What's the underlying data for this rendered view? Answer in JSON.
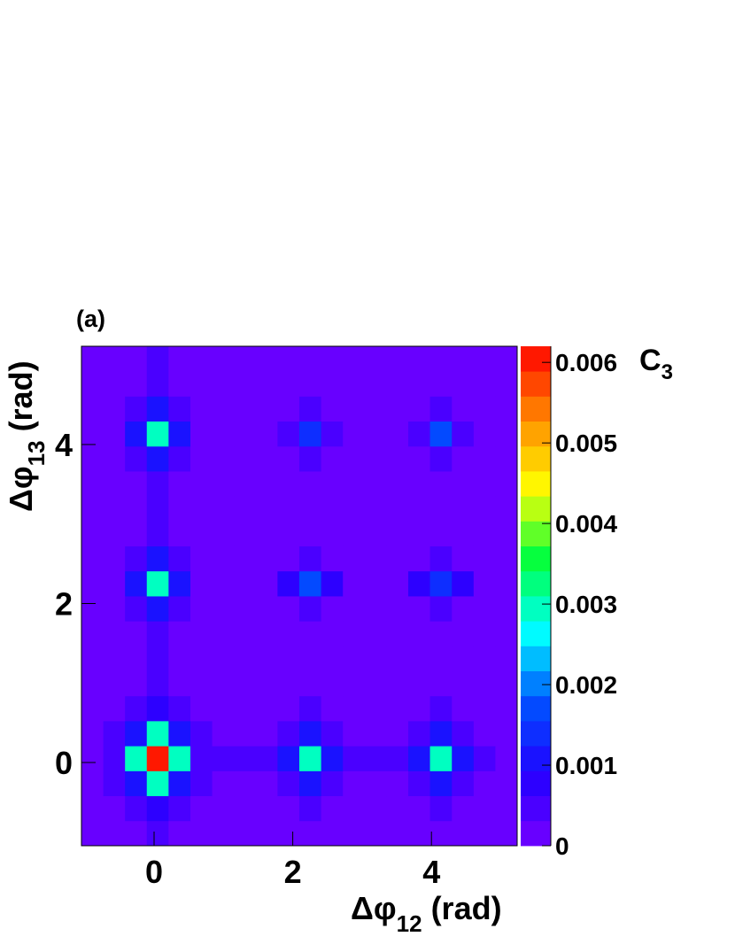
{
  "chart_data": {
    "type": "heatmap",
    "panel_label": "(a)",
    "xlabel": {
      "base": "Δφ",
      "sub": "12",
      "rest": " (rad)"
    },
    "ylabel": {
      "base": "Δφ",
      "sub": "13",
      "rest": " (rad)"
    },
    "zlabel": {
      "base": "C",
      "sub": "3"
    },
    "xlim": [
      -1.047,
      5.236
    ],
    "ylim": [
      -1.047,
      5.236
    ],
    "xticks": [
      0,
      2,
      4
    ],
    "yticks": [
      0,
      2,
      4
    ],
    "zlim": [
      0,
      0.0062
    ],
    "zticks": [
      0,
      0.001,
      0.002,
      0.003,
      0.004,
      0.005,
      0.006
    ],
    "colors": [
      "#7700ff",
      "#2200ff",
      "#0050ff",
      "#00ffff",
      "#00ff40",
      "#ffff00",
      "#ff8800",
      "#ff0000"
    ],
    "xbins": [
      -1.047,
      -0.733,
      -0.419,
      -0.105,
      0.209,
      0.524,
      0.838,
      1.152,
      1.466,
      1.78,
      2.094,
      2.409,
      2.723,
      3.037,
      3.351,
      3.665,
      3.979,
      4.294,
      4.608,
      4.922,
      5.236
    ],
    "ybins": [
      -1.047,
      -0.733,
      -0.419,
      -0.105,
      0.209,
      0.524,
      0.838,
      1.152,
      1.466,
      1.78,
      2.094,
      2.409,
      2.723,
      3.037,
      3.351,
      3.665,
      3.979,
      4.294,
      4.608,
      4.922,
      5.236
    ],
    "z": [
      [
        0.0002,
        0.0002,
        0.0002,
        0.0005,
        0.0002,
        0.0002,
        0.0002,
        0.0002,
        0.0002,
        0.0002,
        0.0002,
        0.0002,
        0.0002,
        0.0002,
        0.0002,
        0.0002,
        0.0002,
        0.0002,
        0.0002,
        0.0002
      ],
      [
        0.0002,
        0.0002,
        0.0005,
        0.0008,
        0.0005,
        0.0002,
        0.0002,
        0.0002,
        0.0002,
        0.0002,
        0.0004,
        0.0002,
        0.0002,
        0.0002,
        0.0002,
        0.0002,
        0.0004,
        0.0002,
        0.0002,
        0.0002
      ],
      [
        0.0002,
        0.0004,
        0.0012,
        0.003,
        0.0012,
        0.0004,
        0.0002,
        0.0002,
        0.0002,
        0.0006,
        0.0012,
        0.0006,
        0.0002,
        0.0002,
        0.0002,
        0.0006,
        0.0012,
        0.0006,
        0.0002,
        0.0002
      ],
      [
        0.0002,
        0.0005,
        0.003,
        0.006,
        0.003,
        0.0005,
        0.0004,
        0.0004,
        0.0004,
        0.0012,
        0.0028,
        0.0012,
        0.0004,
        0.0004,
        0.0004,
        0.0012,
        0.0028,
        0.0012,
        0.0004,
        0.0002
      ],
      [
        0.0002,
        0.0004,
        0.0012,
        0.003,
        0.0012,
        0.0004,
        0.0002,
        0.0002,
        0.0002,
        0.0006,
        0.0012,
        0.0006,
        0.0002,
        0.0002,
        0.0002,
        0.0006,
        0.0012,
        0.0006,
        0.0002,
        0.0002
      ],
      [
        0.0002,
        0.0002,
        0.0005,
        0.0008,
        0.0005,
        0.0002,
        0.0002,
        0.0002,
        0.0002,
        0.0002,
        0.0004,
        0.0002,
        0.0002,
        0.0002,
        0.0002,
        0.0002,
        0.0004,
        0.0002,
        0.0002,
        0.0002
      ],
      [
        0.0002,
        0.0002,
        0.0002,
        0.0004,
        0.0002,
        0.0002,
        0.0002,
        0.0002,
        0.0002,
        0.0002,
        0.0002,
        0.0002,
        0.0002,
        0.0002,
        0.0002,
        0.0002,
        0.0002,
        0.0002,
        0.0002,
        0.0002
      ],
      [
        0.0002,
        0.0002,
        0.0002,
        0.0004,
        0.0002,
        0.0002,
        0.0002,
        0.0002,
        0.0002,
        0.0002,
        0.0002,
        0.0002,
        0.0002,
        0.0002,
        0.0002,
        0.0002,
        0.0002,
        0.0002,
        0.0002,
        0.0002
      ],
      [
        0.0002,
        0.0002,
        0.0002,
        0.0004,
        0.0002,
        0.0002,
        0.0002,
        0.0002,
        0.0002,
        0.0002,
        0.0002,
        0.0002,
        0.0002,
        0.0002,
        0.0002,
        0.0002,
        0.0002,
        0.0002,
        0.0002,
        0.0002
      ],
      [
        0.0002,
        0.0002,
        0.0006,
        0.0012,
        0.0006,
        0.0002,
        0.0002,
        0.0002,
        0.0002,
        0.0002,
        0.0005,
        0.0002,
        0.0002,
        0.0002,
        0.0002,
        0.0002,
        0.0005,
        0.0002,
        0.0002,
        0.0002
      ],
      [
        0.0002,
        0.0002,
        0.0012,
        0.0028,
        0.0012,
        0.0002,
        0.0002,
        0.0002,
        0.0002,
        0.0007,
        0.0018,
        0.0007,
        0.0002,
        0.0002,
        0.0002,
        0.0007,
        0.0015,
        0.0007,
        0.0002,
        0.0002
      ],
      [
        0.0002,
        0.0002,
        0.0006,
        0.0012,
        0.0006,
        0.0002,
        0.0002,
        0.0002,
        0.0002,
        0.0002,
        0.0005,
        0.0002,
        0.0002,
        0.0002,
        0.0002,
        0.0002,
        0.0005,
        0.0002,
        0.0002,
        0.0002
      ],
      [
        0.0002,
        0.0002,
        0.0002,
        0.0004,
        0.0002,
        0.0002,
        0.0002,
        0.0002,
        0.0002,
        0.0002,
        0.0002,
        0.0002,
        0.0002,
        0.0002,
        0.0002,
        0.0002,
        0.0002,
        0.0002,
        0.0002,
        0.0002
      ],
      [
        0.0002,
        0.0002,
        0.0002,
        0.0004,
        0.0002,
        0.0002,
        0.0002,
        0.0002,
        0.0002,
        0.0002,
        0.0002,
        0.0002,
        0.0002,
        0.0002,
        0.0002,
        0.0002,
        0.0002,
        0.0002,
        0.0002,
        0.0002
      ],
      [
        0.0002,
        0.0002,
        0.0002,
        0.0004,
        0.0002,
        0.0002,
        0.0002,
        0.0002,
        0.0002,
        0.0002,
        0.0002,
        0.0002,
        0.0002,
        0.0002,
        0.0002,
        0.0002,
        0.0002,
        0.0002,
        0.0002,
        0.0002
      ],
      [
        0.0002,
        0.0002,
        0.0006,
        0.0012,
        0.0006,
        0.0002,
        0.0002,
        0.0002,
        0.0002,
        0.0002,
        0.0005,
        0.0002,
        0.0002,
        0.0002,
        0.0002,
        0.0002,
        0.0005,
        0.0002,
        0.0002,
        0.0002
      ],
      [
        0.0002,
        0.0002,
        0.0012,
        0.0028,
        0.0012,
        0.0002,
        0.0002,
        0.0002,
        0.0002,
        0.0006,
        0.0015,
        0.0006,
        0.0002,
        0.0002,
        0.0002,
        0.0006,
        0.0018,
        0.0006,
        0.0002,
        0.0002
      ],
      [
        0.0002,
        0.0002,
        0.0006,
        0.0012,
        0.0006,
        0.0002,
        0.0002,
        0.0002,
        0.0002,
        0.0002,
        0.0005,
        0.0002,
        0.0002,
        0.0002,
        0.0002,
        0.0002,
        0.0005,
        0.0002,
        0.0002,
        0.0002
      ],
      [
        0.0002,
        0.0002,
        0.0002,
        0.0004,
        0.0002,
        0.0002,
        0.0002,
        0.0002,
        0.0002,
        0.0002,
        0.0002,
        0.0002,
        0.0002,
        0.0002,
        0.0002,
        0.0002,
        0.0002,
        0.0002,
        0.0002,
        0.0002
      ],
      [
        0.0002,
        0.0002,
        0.0002,
        0.0004,
        0.0002,
        0.0002,
        0.0002,
        0.0002,
        0.0002,
        0.0002,
        0.0002,
        0.0002,
        0.0002,
        0.0002,
        0.0002,
        0.0002,
        0.0002,
        0.0002,
        0.0002,
        0.0002
      ]
    ]
  }
}
